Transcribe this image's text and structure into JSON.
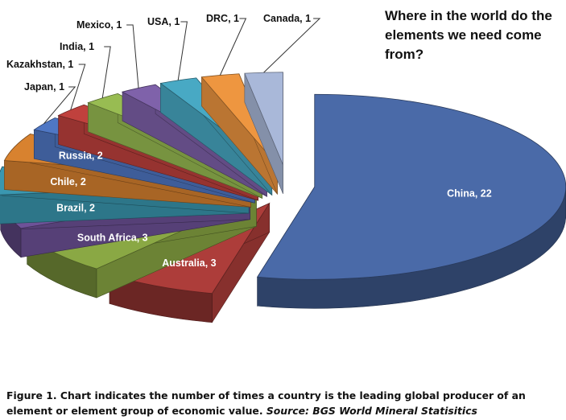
{
  "chart_data": {
    "type": "pie",
    "title": "Where in the world do the elements we need come from?",
    "slices": [
      {
        "label": "China, 22",
        "category": "China",
        "value": 22,
        "color": "#4a6aa8"
      },
      {
        "label": "Australia, 3",
        "category": "Australia",
        "value": 3,
        "color": "#ad3d3a"
      },
      {
        "label": "South Africa, 3",
        "category": "South Africa",
        "value": 3,
        "color": "#8aa844"
      },
      {
        "label": "Brazil, 2",
        "category": "Brazil",
        "value": 2,
        "color": "#6e5298"
      },
      {
        "label": "Chile, 2",
        "category": "Chile",
        "value": 2,
        "color": "#3a97b0"
      },
      {
        "label": "Russia, 2",
        "category": "Russia",
        "value": 2,
        "color": "#d8822f"
      },
      {
        "label": "Japan, 1",
        "category": "Japan",
        "value": 1,
        "color": "#4f77c4"
      },
      {
        "label": "Kazakhstan, 1",
        "category": "Kazakhstan",
        "value": 1,
        "color": "#c0413d"
      },
      {
        "label": "India, 1",
        "category": "India",
        "value": 1,
        "color": "#98bc52"
      },
      {
        "label": "Mexico, 1",
        "category": "Mexico",
        "value": 1,
        "color": "#7f62aa"
      },
      {
        "label": "USA, 1",
        "category": "USA",
        "value": 1,
        "color": "#48a9c4"
      },
      {
        "label": "DRC, 1",
        "category": "DRC",
        "value": 1,
        "color": "#ee9640"
      },
      {
        "label": "Canada, 1",
        "category": "Canada",
        "value": 1,
        "color": "#a9b8d9"
      }
    ]
  },
  "caption": {
    "text": "Figure 1. Chart indicates the number of times a country is the leading global producer of an element or element group of economic value.",
    "source": "Source: BGS World Mineral Statisitics"
  }
}
